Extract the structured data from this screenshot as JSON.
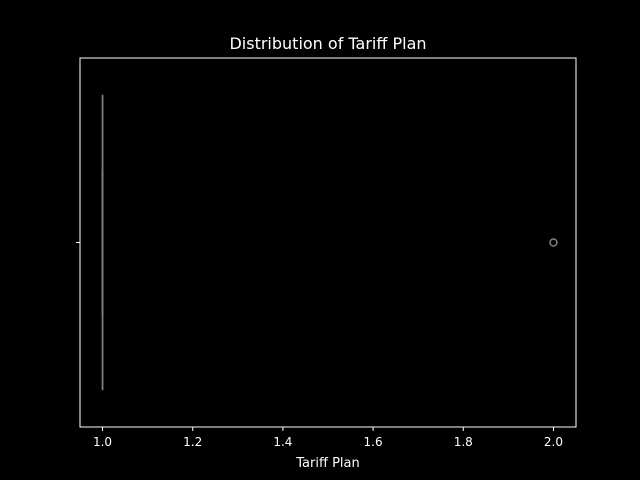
{
  "chart_data": {
    "type": "box",
    "title": "Distribution of Tariff Plan",
    "xlabel": "Tariff Plan",
    "ylabel": "",
    "orientation": "horizontal",
    "xlim": [
      0.95,
      2.05
    ],
    "x_ticks": [
      1.0,
      1.2,
      1.4,
      1.6,
      1.8,
      2.0
    ],
    "x_tick_labels": [
      "1.0",
      "1.2",
      "1.4",
      "1.6",
      "1.8",
      "2.0"
    ],
    "box": {
      "min": 1.0,
      "q1": 1.0,
      "median": 1.0,
      "q3": 1.0,
      "max": 1.0,
      "outliers": [
        2.0
      ]
    },
    "grid": false,
    "legend": "none",
    "colors": {
      "background": "#000000",
      "axes": "#ffffff",
      "box": "#808080",
      "outlier": "#808080"
    }
  }
}
